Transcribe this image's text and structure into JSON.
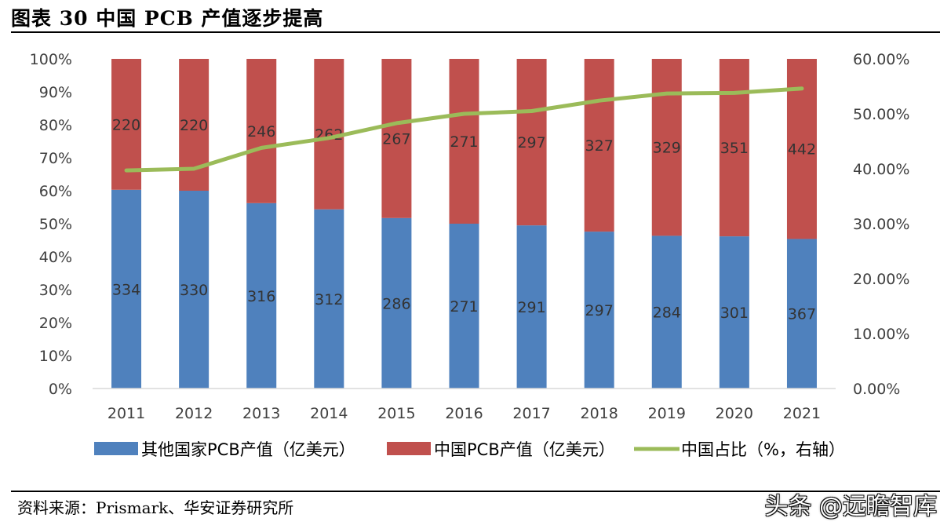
{
  "figure": {
    "title": "图表 30  中国 PCB 产值逐步提高",
    "source": "资料来源：Prismark、华安证券研究所",
    "watermark": "头条 @远瞻智库"
  },
  "chart_data": {
    "type": "bar",
    "stacked": "percent",
    "categories": [
      "2011",
      "2012",
      "2013",
      "2014",
      "2015",
      "2016",
      "2017",
      "2018",
      "2019",
      "2020",
      "2021"
    ],
    "series": [
      {
        "name": "其他国家PCB产值（亿美元）",
        "type": "bar",
        "color": "#4f81bd",
        "values": [
          334,
          330,
          316,
          312,
          286,
          271,
          291,
          297,
          284,
          301,
          367
        ]
      },
      {
        "name": "中国PCB产值（亿美元）",
        "type": "bar",
        "color": "#c0504d",
        "values": [
          220,
          220,
          246,
          262,
          267,
          271,
          297,
          327,
          329,
          351,
          442
        ]
      },
      {
        "name": "中国占比（%，右轴）",
        "type": "line",
        "axis": "right",
        "color": "#9bbb59",
        "values": [
          39.7,
          40.0,
          43.8,
          45.6,
          48.3,
          50.0,
          50.5,
          52.4,
          53.7,
          53.8,
          54.6
        ]
      }
    ],
    "left_axis": {
      "ticks": [
        "0%",
        "10%",
        "20%",
        "30%",
        "40%",
        "50%",
        "60%",
        "70%",
        "80%",
        "90%",
        "100%"
      ],
      "range": [
        0,
        100
      ]
    },
    "right_axis": {
      "ticks": [
        "0.00%",
        "10.00%",
        "20.00%",
        "30.00%",
        "40.00%",
        "50.00%",
        "60.00%"
      ],
      "range": [
        0,
        60
      ]
    },
    "grid": false,
    "legend": "bottom"
  }
}
